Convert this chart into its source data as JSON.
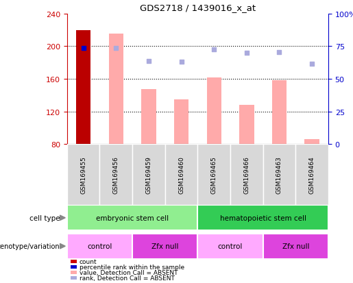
{
  "title": "GDS2718 / 1439016_x_at",
  "samples": [
    "GSM169455",
    "GSM169456",
    "GSM169459",
    "GSM169460",
    "GSM169465",
    "GSM169466",
    "GSM169463",
    "GSM169464"
  ],
  "bar_values": [
    220,
    215,
    147,
    135,
    162,
    128,
    158,
    86
  ],
  "bar_colors_type": [
    "dark_red",
    "pink",
    "pink",
    "pink",
    "pink",
    "pink",
    "pink",
    "pink"
  ],
  "rank_dots": [
    198,
    198,
    182,
    181,
    196,
    192,
    193,
    178
  ],
  "rank_dot_colors": [
    "blue",
    "lavender",
    "lavender",
    "lavender",
    "lavender",
    "lavender",
    "lavender",
    "lavender"
  ],
  "ylim_left": [
    80,
    240
  ],
  "yticks_left": [
    80,
    120,
    160,
    200,
    240
  ],
  "ylim_right": [
    0,
    100
  ],
  "yticks_right": [
    0,
    25,
    50,
    75,
    100
  ],
  "cell_type_labels": [
    {
      "text": "embryonic stem cell",
      "xstart": 0,
      "xend": 3,
      "color": "#90ee90"
    },
    {
      "text": "hematopoietic stem cell",
      "xstart": 4,
      "xend": 7,
      "color": "#33cc55"
    }
  ],
  "genotype_labels": [
    {
      "text": "control",
      "xstart": 0,
      "xend": 1,
      "color": "#ffaaff"
    },
    {
      "text": "Zfx null",
      "xstart": 2,
      "xend": 3,
      "color": "#dd44dd"
    },
    {
      "text": "control",
      "xstart": 4,
      "xend": 5,
      "color": "#ffaaff"
    },
    {
      "text": "Zfx null",
      "xstart": 6,
      "xend": 7,
      "color": "#dd44dd"
    }
  ],
  "legend_items": [
    {
      "label": "count",
      "color": "#cc0000"
    },
    {
      "label": "percentile rank within the sample",
      "color": "#0000cc"
    },
    {
      "label": "value, Detection Call = ABSENT",
      "color": "#ffaaaa"
    },
    {
      "label": "rank, Detection Call = ABSENT",
      "color": "#aaaadd"
    }
  ],
  "left_axis_color": "#cc0000",
  "right_axis_color": "#0000cc",
  "bar_width": 0.45
}
